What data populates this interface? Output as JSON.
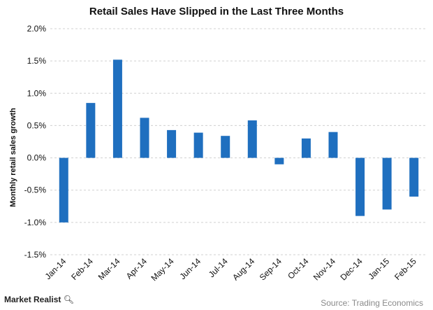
{
  "chart_data": {
    "type": "bar",
    "title": "Retail Sales Have Slipped in the Last Three Months",
    "xlabel": "",
    "ylabel": "Monthly retail sales growth",
    "categories": [
      "Jan-14",
      "Feb-14",
      "Mar-14",
      "Apr-14",
      "May-14",
      "Jun-14",
      "Jul-14",
      "Aug-14",
      "Sep-14",
      "Oct-14",
      "Nov-14",
      "Dec-14",
      "Jan-15",
      "Feb-15"
    ],
    "values": [
      -1.0,
      0.85,
      1.52,
      0.62,
      0.43,
      0.39,
      0.34,
      0.58,
      -0.1,
      0.3,
      0.4,
      -0.9,
      -0.8,
      -0.6
    ],
    "ylim": [
      -1.5,
      2.0
    ],
    "yticks": [
      "2.0%",
      "1.5%",
      "1.0%",
      "0.5%",
      "0.0%",
      "-0.5%",
      "-1.0%",
      "-1.5%"
    ],
    "ytick_values": [
      2.0,
      1.5,
      1.0,
      0.5,
      0.0,
      -0.5,
      -1.0,
      -1.5
    ],
    "grid": true,
    "bar_color": "#1f6fbf",
    "grid_color": "#d0d0d0"
  },
  "footer": {
    "brand": "Market Realist",
    "source": "Source: Trading Economics"
  }
}
